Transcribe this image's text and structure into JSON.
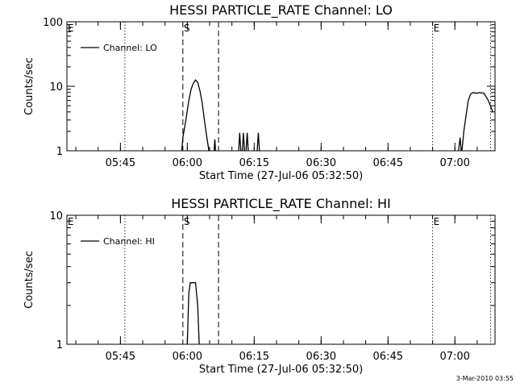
{
  "footer_timestamp": "3-Mar-2010 03:55",
  "chart_data": [
    {
      "type": "line",
      "title": "HESSI PARTICLE_RATE Channel: LO",
      "xlabel": "Start Time (27-Jul-06 05:32:50)",
      "ylabel": "Counts/sec",
      "yscale": "log",
      "xlim": [
        "05:33",
        "07:09"
      ],
      "ylim": [
        1,
        100
      ],
      "xticks": [
        "05:45",
        "06:00",
        "06:15",
        "06:30",
        "06:45",
        "07:00"
      ],
      "yticks": [
        "1",
        "10",
        "100"
      ],
      "legend": "top-left",
      "series": [
        {
          "name": "Channel: LO",
          "points": [
            [
              "05:58:45",
              1
            ],
            [
              "05:59:00",
              1.6
            ],
            [
              "05:59:20",
              2.2
            ],
            [
              "05:59:50",
              3.5
            ],
            [
              "06:00:20",
              6
            ],
            [
              "06:00:50",
              9
            ],
            [
              "06:01:20",
              11
            ],
            [
              "06:01:50",
              12.5
            ],
            [
              "06:02:20",
              11.5
            ],
            [
              "06:02:50",
              8.5
            ],
            [
              "06:03:20",
              5.5
            ],
            [
              "06:03:50",
              3
            ],
            [
              "06:04:20",
              1.7
            ],
            [
              "06:04:50",
              1
            ],
            [
              null,
              null
            ],
            [
              "06:06:00",
              1
            ],
            [
              "06:06:10",
              1.5
            ],
            [
              "06:06:20",
              1
            ],
            [
              null,
              null
            ],
            [
              "06:11:30",
              1
            ],
            [
              "06:11:45",
              1.9
            ],
            [
              "06:12:00",
              1
            ],
            [
              null,
              null
            ],
            [
              "06:12:20",
              1
            ],
            [
              "06:12:35",
              1.9
            ],
            [
              "06:12:50",
              1
            ],
            [
              null,
              null
            ],
            [
              "06:13:10",
              1
            ],
            [
              "06:13:25",
              1.9
            ],
            [
              "06:13:40",
              1
            ],
            [
              null,
              null
            ],
            [
              "06:15:40",
              1
            ],
            [
              "06:15:55",
              1.9
            ],
            [
              "06:16:10",
              1
            ],
            [
              null,
              null
            ],
            [
              "07:00:50",
              1
            ],
            [
              "07:01:10",
              1.6
            ],
            [
              "07:01:25",
              1
            ],
            [
              null,
              null
            ],
            [
              "07:01:35",
              1
            ],
            [
              "07:02:00",
              2
            ],
            [
              "07:02:30",
              3.5
            ],
            [
              "07:03:00",
              6
            ],
            [
              "07:03:30",
              7.5
            ],
            [
              "07:04:00",
              8
            ],
            [
              "07:05:00",
              7.8
            ],
            [
              "07:05:30",
              8
            ],
            [
              "07:06:30",
              7.8
            ],
            [
              "07:07:30",
              6
            ],
            [
              "07:08:30",
              4
            ]
          ]
        }
      ],
      "markers": [
        {
          "label": "E",
          "time": "05:33",
          "style": "dotted"
        },
        {
          "label": "",
          "time": "05:46",
          "style": "dotted"
        },
        {
          "label": "S",
          "time": "05:59",
          "style": "dashed"
        },
        {
          "label": "",
          "time": "06:07",
          "style": "dashed"
        },
        {
          "label": "E",
          "time": "06:55",
          "style": "dotted"
        },
        {
          "label": "",
          "time": "07:08",
          "style": "dotted"
        }
      ]
    },
    {
      "type": "line",
      "title": "HESSI PARTICLE_RATE Channel: HI",
      "xlabel": "Start Time (27-Jul-06 05:32:50)",
      "ylabel": "Counts/sec",
      "yscale": "log",
      "xlim": [
        "05:33",
        "07:09"
      ],
      "ylim": [
        1,
        10
      ],
      "xticks": [
        "05:45",
        "06:00",
        "06:15",
        "06:30",
        "06:45",
        "07:00"
      ],
      "yticks": [
        "1",
        "10"
      ],
      "legend": "top-left",
      "series": [
        {
          "name": "Channel: HI",
          "points": [
            [
              "06:00:00",
              1
            ],
            [
              "06:00:20",
              2.5
            ],
            [
              "06:00:40",
              3
            ],
            [
              "06:01:50",
              3
            ],
            [
              "06:02:20",
              2
            ],
            [
              "06:02:40",
              1
            ]
          ]
        }
      ],
      "markers": [
        {
          "label": "E",
          "time": "05:33",
          "style": "dotted"
        },
        {
          "label": "",
          "time": "05:46",
          "style": "dotted"
        },
        {
          "label": "S",
          "time": "05:59",
          "style": "dashed"
        },
        {
          "label": "",
          "time": "06:07",
          "style": "dashed"
        },
        {
          "label": "E",
          "time": "06:55",
          "style": "dotted"
        },
        {
          "label": "",
          "time": "07:08",
          "style": "dotted"
        }
      ]
    }
  ]
}
